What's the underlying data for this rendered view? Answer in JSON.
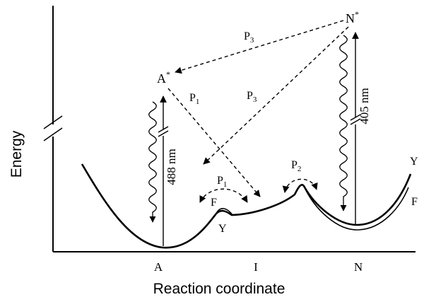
{
  "axes": {
    "y_label": "Energy",
    "x_label": "Reaction coordinate"
  },
  "states": {
    "A": "A",
    "I": "I",
    "N": "N",
    "A_star_base": "A",
    "A_star_sup": "*",
    "N_star_base": "N",
    "N_star_sup": "*"
  },
  "pathways": {
    "P1_upper_base": "P",
    "P1_upper_sub": "1",
    "P1_lower_base": "P",
    "P1_lower_sub": "1",
    "P2_base": "P",
    "P2_sub": "2",
    "P3_upper_base": "P",
    "P3_upper_sub": "3",
    "P3_lower_base": "P",
    "P3_lower_sub": "3"
  },
  "wavelengths": {
    "excitation_A": "488 nm",
    "excitation_N": "405 nm"
  },
  "curve_labels": {
    "F_mid": "F",
    "Y_mid": "Y",
    "Y_right": "Y",
    "F_right": "F"
  }
}
